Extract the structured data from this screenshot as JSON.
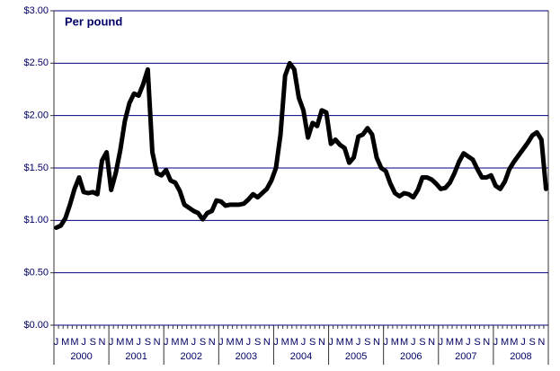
{
  "chart_data": {
    "type": "line",
    "annotation": "Per pound",
    "categories": [
      "J",
      null,
      "M",
      null,
      "M",
      null,
      "J",
      null,
      "S",
      null,
      "N",
      null,
      "J",
      null,
      "M",
      null,
      "M",
      null,
      "J",
      null,
      "S",
      null,
      "N",
      null,
      "J",
      null,
      "M",
      null,
      "M",
      null,
      "J",
      null,
      "S",
      null,
      "N",
      null,
      "J",
      null,
      "M",
      null,
      "M",
      null,
      "J",
      null,
      "S",
      null,
      "N",
      null,
      "J",
      null,
      "M",
      null,
      "M",
      null,
      "J",
      null,
      "S",
      null,
      "N",
      null,
      "J",
      null,
      "M",
      null,
      "M",
      null,
      "J",
      null,
      "S",
      null,
      "N",
      null,
      "J",
      null,
      "M",
      null,
      "M",
      null,
      "J",
      null,
      "S",
      null,
      "N",
      null,
      "J",
      null,
      "M",
      null,
      "M",
      null,
      "J",
      null,
      "S",
      null,
      "N",
      null,
      "J",
      null,
      "M",
      null,
      "M",
      null,
      "J",
      null,
      "S",
      null,
      "N",
      null
    ],
    "year_labels": [
      "2000",
      "2001",
      "2002",
      "2003",
      "2004",
      "2005",
      "2006",
      "2007",
      "2008"
    ],
    "color": "#000000",
    "values": [
      0.93,
      0.95,
      1.02,
      1.15,
      1.3,
      1.41,
      1.27,
      1.26,
      1.27,
      1.25,
      1.57,
      1.65,
      1.29,
      1.45,
      1.67,
      1.95,
      2.12,
      2.21,
      2.19,
      2.3,
      2.44,
      1.65,
      1.45,
      1.43,
      1.48,
      1.38,
      1.36,
      1.28,
      1.15,
      1.12,
      1.09,
      1.07,
      1.01,
      1.07,
      1.09,
      1.19,
      1.18,
      1.14,
      1.15,
      1.15,
      1.15,
      1.16,
      1.2,
      1.25,
      1.22,
      1.26,
      1.3,
      1.38,
      1.5,
      1.82,
      2.38,
      2.5,
      2.44,
      2.17,
      2.05,
      1.79,
      1.93,
      1.9,
      2.05,
      2.03,
      1.73,
      1.77,
      1.72,
      1.69,
      1.55,
      1.6,
      1.8,
      1.82,
      1.88,
      1.82,
      1.6,
      1.5,
      1.47,
      1.35,
      1.26,
      1.23,
      1.26,
      1.25,
      1.22,
      1.29,
      1.41,
      1.41,
      1.39,
      1.35,
      1.3,
      1.31,
      1.36,
      1.45,
      1.56,
      1.64,
      1.61,
      1.58,
      1.49,
      1.41,
      1.41,
      1.43,
      1.33,
      1.3,
      1.37,
      1.49,
      1.56,
      1.62,
      1.68,
      1.74,
      1.81,
      1.84,
      1.77,
      1.3
    ],
    "ylim": [
      0,
      3
    ],
    "yticks": [
      {
        "value": 0,
        "label": "$0.00"
      },
      {
        "value": 0.5,
        "label": "$0.50"
      },
      {
        "value": 1,
        "label": "$1.00"
      },
      {
        "value": 1.5,
        "label": "$1.50"
      },
      {
        "value": 2,
        "label": "$2.00"
      },
      {
        "value": 2.5,
        "label": "$2.50"
      },
      {
        "value": 3,
        "label": "$3.00"
      }
    ],
    "grid": true
  }
}
